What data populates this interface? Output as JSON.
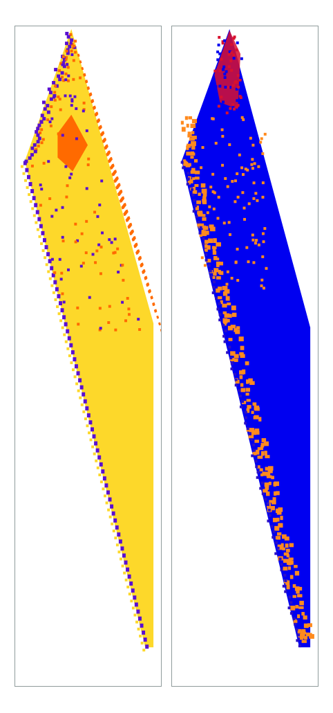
{
  "panels": [
    {
      "id": "automaton-evolution-left",
      "background": "#ffffff",
      "border": "#8f9b9b",
      "fill_color": "#fdd82a",
      "accent_color": "#ff6a00",
      "edge_color": "#5a0fd0"
    },
    {
      "id": "automaton-evolution-right",
      "background": "#ffffff",
      "border": "#8f9b9b",
      "fill_color": "#0000f0",
      "accent_color": "#ff8a1e",
      "apex_color": "#d8112f",
      "edge_color": "#2a0fc8"
    }
  ]
}
